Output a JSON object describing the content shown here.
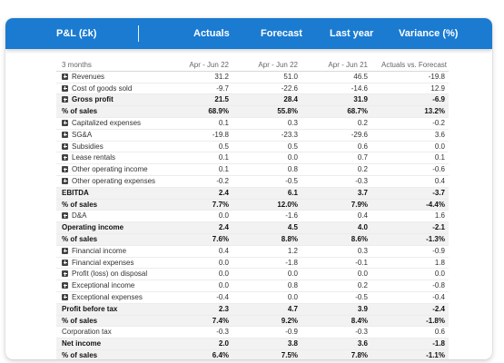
{
  "header": {
    "title": "P&L (£k)",
    "columns": [
      "Actuals",
      "Forecast",
      "Last year",
      "Variance (%)"
    ]
  },
  "subheader": {
    "label": "3 months",
    "cols": [
      "Apr - Jun 22",
      "Apr - Jun 22",
      "Apr - Jun 21",
      "Actuals vs. Forecast"
    ]
  },
  "rows": [
    {
      "label": "Revenues",
      "exp": true,
      "bold": false,
      "v": [
        "31.2",
        "51.0",
        "46.5",
        "-19.8"
      ]
    },
    {
      "label": "Cost of goods sold",
      "exp": true,
      "bold": false,
      "v": [
        "-9.7",
        "-22.6",
        "-14.6",
        "12.9"
      ]
    },
    {
      "label": "Gross profit",
      "exp": true,
      "bold": true,
      "v": [
        "21.5",
        "28.4",
        "31.9",
        "-6.9"
      ]
    },
    {
      "label": "% of sales",
      "exp": false,
      "bold": true,
      "v": [
        "68.9%",
        "55.8%",
        "68.7%",
        "13.2%"
      ]
    },
    {
      "label": "Capitalized expenses",
      "exp": true,
      "bold": false,
      "v": [
        "0.1",
        "0.3",
        "0.2",
        "-0.2"
      ]
    },
    {
      "label": "SG&A",
      "exp": true,
      "bold": false,
      "v": [
        "-19.8",
        "-23.3",
        "-29.6",
        "3.6"
      ]
    },
    {
      "label": "Subsidies",
      "exp": true,
      "bold": false,
      "v": [
        "0.5",
        "0.5",
        "0.6",
        "0.0"
      ]
    },
    {
      "label": "Lease rentals",
      "exp": true,
      "bold": false,
      "v": [
        "0.1",
        "0.0",
        "0.7",
        "0.1"
      ]
    },
    {
      "label": "Other operating income",
      "exp": true,
      "bold": false,
      "v": [
        "0.1",
        "0.8",
        "0.2",
        "-0.6"
      ]
    },
    {
      "label": "Other operating expenses",
      "exp": true,
      "bold": false,
      "v": [
        "-0.2",
        "-0.5",
        "-0.3",
        "0.4"
      ]
    },
    {
      "label": "EBITDA",
      "exp": false,
      "bold": true,
      "v": [
        "2.4",
        "6.1",
        "3.7",
        "-3.7"
      ]
    },
    {
      "label": "% of sales",
      "exp": false,
      "bold": true,
      "v": [
        "7.7%",
        "12.0%",
        "7.9%",
        "-4.4%"
      ]
    },
    {
      "label": "D&A",
      "exp": true,
      "bold": false,
      "v": [
        "0.0",
        "-1.6",
        "0.4",
        "1.6"
      ]
    },
    {
      "label": "Operating income",
      "exp": false,
      "bold": true,
      "v": [
        "2.4",
        "4.5",
        "4.0",
        "-2.1"
      ]
    },
    {
      "label": "% of sales",
      "exp": false,
      "bold": true,
      "v": [
        "7.6%",
        "8.8%",
        "8.6%",
        "-1.3%"
      ]
    },
    {
      "label": "Financial income",
      "exp": true,
      "bold": false,
      "v": [
        "0.4",
        "1.2",
        "0.3",
        "-0.9"
      ]
    },
    {
      "label": "Financial expenses",
      "exp": true,
      "bold": false,
      "v": [
        "0.0",
        "-1.8",
        "-0.1",
        "1.8"
      ]
    },
    {
      "label": "Profit (loss) on disposal",
      "exp": true,
      "bold": false,
      "v": [
        "0.0",
        "0.0",
        "0.0",
        "0.0"
      ]
    },
    {
      "label": "Exceptional income",
      "exp": true,
      "bold": false,
      "v": [
        "0.0",
        "0.8",
        "0.2",
        "-0.8"
      ]
    },
    {
      "label": "Exceptional expenses",
      "exp": true,
      "bold": false,
      "v": [
        "-0.4",
        "0.0",
        "-0.5",
        "-0.4"
      ]
    },
    {
      "label": "Profit before tax",
      "exp": false,
      "bold": true,
      "v": [
        "2.3",
        "4.7",
        "3.9",
        "-2.4"
      ]
    },
    {
      "label": "% of sales",
      "exp": false,
      "bold": true,
      "v": [
        "7.4%",
        "9.2%",
        "8.4%",
        "-1.8%"
      ]
    },
    {
      "label": "Corporation tax",
      "exp": false,
      "bold": false,
      "v": [
        "-0.3",
        "-0.9",
        "-0.3",
        "0.6"
      ]
    },
    {
      "label": "Net income",
      "exp": false,
      "bold": true,
      "v": [
        "2.0",
        "3.8",
        "3.6",
        "-1.8"
      ]
    },
    {
      "label": "% of sales",
      "exp": false,
      "bold": true,
      "v": [
        "6.4%",
        "7.5%",
        "7.8%",
        "-1.1%"
      ]
    }
  ]
}
